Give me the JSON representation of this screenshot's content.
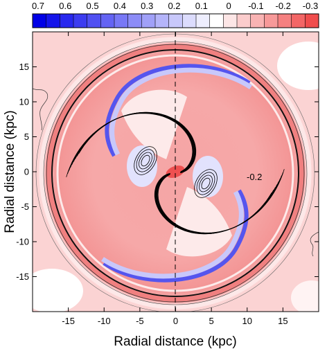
{
  "chart_data": {
    "type": "heatmap",
    "title": "",
    "xlabel": "Radial distance (kpc)",
    "ylabel": "Radial distance (kpc)",
    "xlim": [
      -20,
      20
    ],
    "ylim": [
      -20,
      20
    ],
    "x_ticks": [
      -15,
      -10,
      -5,
      0,
      5,
      10,
      15
    ],
    "y_ticks": [
      -15,
      -10,
      -5,
      0,
      5,
      10,
      15
    ],
    "grid": false,
    "colorbar": {
      "position": "top",
      "tick_labels": [
        "0.7",
        "0.6",
        "0.5",
        "0.4",
        "0.3",
        "0.2",
        "0.1",
        "0",
        "-0.1",
        "-0.2",
        "-0.3"
      ],
      "levels": [
        0.7,
        0.65,
        0.6,
        0.55,
        0.5,
        0.45,
        0.4,
        0.35,
        0.3,
        0.25,
        0.2,
        0.15,
        0.1,
        0.05,
        0,
        -0.05,
        -0.1,
        -0.15,
        -0.2,
        -0.25,
        -0.3
      ],
      "colors": [
        "#0000e6",
        "#1414ea",
        "#2828ee",
        "#3c3cf0",
        "#5050f2",
        "#6464f4",
        "#7878f6",
        "#8c8cf7",
        "#a0a0f8",
        "#b4b4fa",
        "#c8c8fb",
        "#dcdcfd",
        "#eeeefe",
        "#ffffff",
        "#fde6e6",
        "#fbcccc",
        "#f9b3b3",
        "#f79999",
        "#f58080",
        "#f36666",
        "#f04d4d"
      ]
    },
    "contour_annotations": [
      {
        "label": "-0.2",
        "x": 11,
        "y": -0.6
      }
    ],
    "reference_line": {
      "style": "dashed",
      "x": 0
    }
  }
}
